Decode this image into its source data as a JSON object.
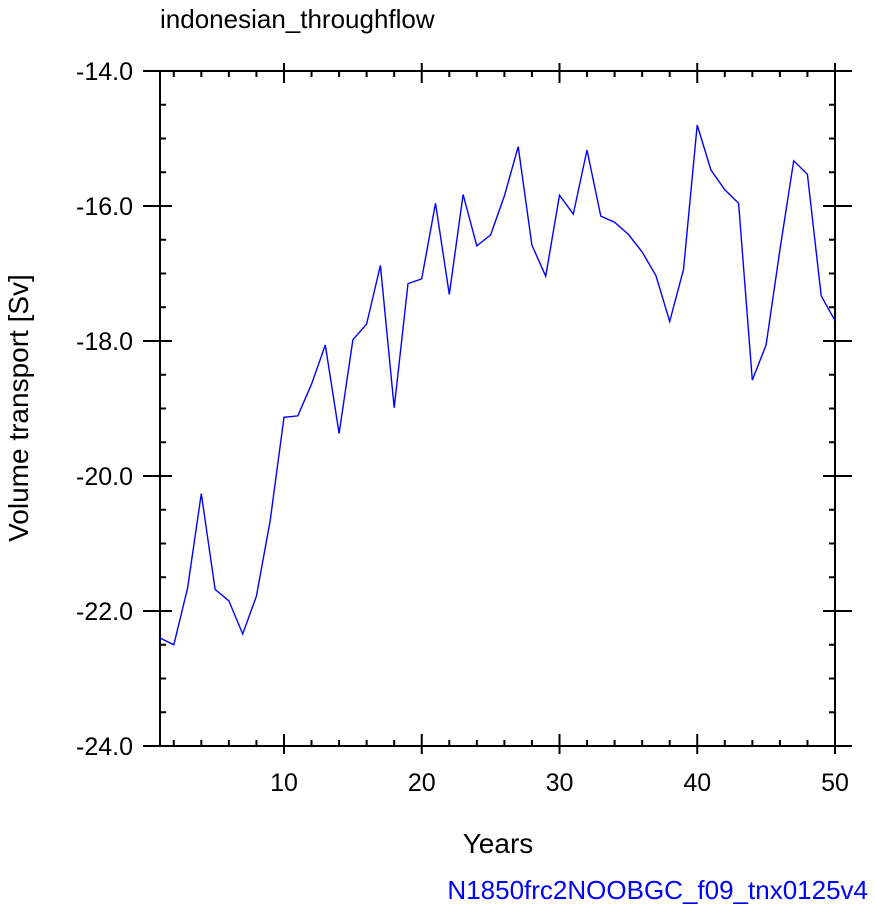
{
  "chart_data": {
    "type": "line",
    "title": "indonesian_throughflow",
    "xlabel": "Years",
    "ylabel": "Volume transport [Sv]",
    "footer": "N1850frc2NOOBGC_f09_tnx0125v4",
    "xlim": [
      1,
      50
    ],
    "ylim": [
      -24,
      -14
    ],
    "x_ticks": [
      10,
      20,
      30,
      40,
      50
    ],
    "y_ticks": [
      -24,
      -22,
      -20,
      -18,
      -16,
      -14
    ],
    "x_tick_labels": [
      "10",
      "20",
      "30",
      "40",
      "50"
    ],
    "y_tick_labels": [
      "-24.0",
      "-22.0",
      "-20.0",
      "-18.0",
      "-16.0",
      "-14.0"
    ],
    "colors": {
      "line": "#0000ff",
      "footer": "#0000ff",
      "axis": "#000000"
    },
    "series": [
      {
        "x": [
          1,
          2,
          3,
          4,
          5,
          6,
          7,
          8,
          9,
          10,
          11,
          12,
          13,
          14,
          15,
          16,
          17,
          18,
          19,
          20,
          21,
          22,
          23,
          24,
          25,
          26,
          27,
          28,
          29,
          30,
          31,
          32,
          33,
          34,
          35,
          36,
          37,
          38,
          39,
          40,
          41,
          42,
          43,
          44,
          45,
          46,
          47,
          48,
          49,
          50
        ],
        "values": [
          -22.4,
          -22.5,
          -21.66,
          -20.26,
          -21.68,
          -21.85,
          -22.34,
          -21.78,
          -20.66,
          -19.13,
          -19.11,
          -18.64,
          -18.06,
          -19.37,
          -17.98,
          -17.75,
          -16.88,
          -18.99,
          -17.15,
          -17.08,
          -15.96,
          -17.31,
          -15.83,
          -16.59,
          -16.43,
          -15.85,
          -15.12,
          -16.58,
          -17.04,
          -15.84,
          -16.12,
          -15.17,
          -16.15,
          -16.24,
          -16.42,
          -16.68,
          -17.03,
          -17.71,
          -16.94,
          -14.8,
          -15.47,
          -15.76,
          -15.96,
          -18.58,
          -18.06,
          -16.65,
          -15.33,
          -15.53,
          -17.33,
          -17.7
        ]
      }
    ]
  }
}
